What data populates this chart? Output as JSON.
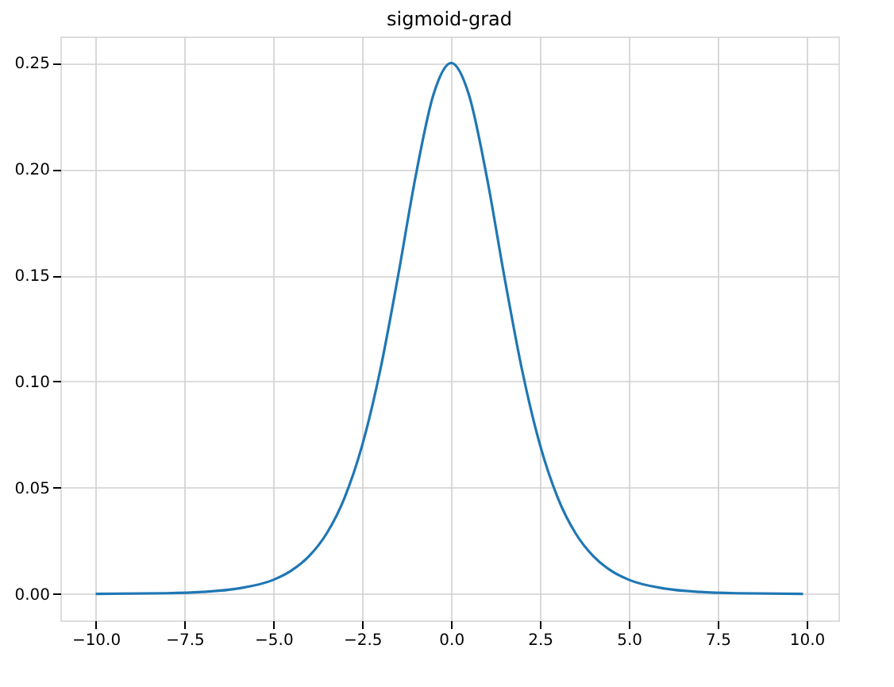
{
  "chart_data": {
    "type": "line",
    "title": "sigmoid-grad",
    "x": [
      -10,
      -8,
      -7,
      -6,
      -5,
      -4.5,
      -4,
      -3.5,
      -3,
      -2.5,
      -2,
      -1.5,
      -1,
      -0.5,
      0,
      0.5,
      1,
      1.5,
      2,
      2.5,
      3,
      3.5,
      4,
      4.5,
      5,
      6,
      7,
      8,
      9.9
    ],
    "series": [
      {
        "color": "#1f77b4",
        "values": [
          0,
          0.0003,
          0.0009,
          0.0025,
          0.0066,
          0.0109,
          0.0177,
          0.0285,
          0.0452,
          0.0701,
          0.105,
          0.1491,
          0.1966,
          0.235,
          0.25,
          0.235,
          0.1966,
          0.1491,
          0.105,
          0.0701,
          0.0452,
          0.0285,
          0.0177,
          0.0109,
          0.0066,
          0.0025,
          0.0009,
          0.0003,
          0
        ]
      }
    ],
    "xlim": [
      -10.995,
      10.895
    ],
    "xticks": [
      {
        "value": -10,
        "label": "−10.0"
      },
      {
        "value": -7.5,
        "label": "−7.5"
      },
      {
        "value": -5,
        "label": "−5.0"
      },
      {
        "value": -2.5,
        "label": "−2.5"
      },
      {
        "value": 0,
        "label": "0.0"
      },
      {
        "value": 2.5,
        "label": "2.5"
      },
      {
        "value": 5,
        "label": "5.0"
      },
      {
        "value": 7.5,
        "label": "7.5"
      },
      {
        "value": 10,
        "label": "10.0"
      }
    ],
    "ylim": [
      -0.0125,
      0.2625
    ],
    "yticks": [
      {
        "value": 0,
        "label": "0.00"
      },
      {
        "value": 0.05,
        "label": "0.05"
      },
      {
        "value": 0.1,
        "label": "0.10"
      },
      {
        "value": 0.15,
        "label": "0.15"
      },
      {
        "value": 0.2,
        "label": "0.20"
      },
      {
        "value": 0.25,
        "label": "0.25"
      }
    ],
    "grid": true,
    "marker": "none"
  }
}
